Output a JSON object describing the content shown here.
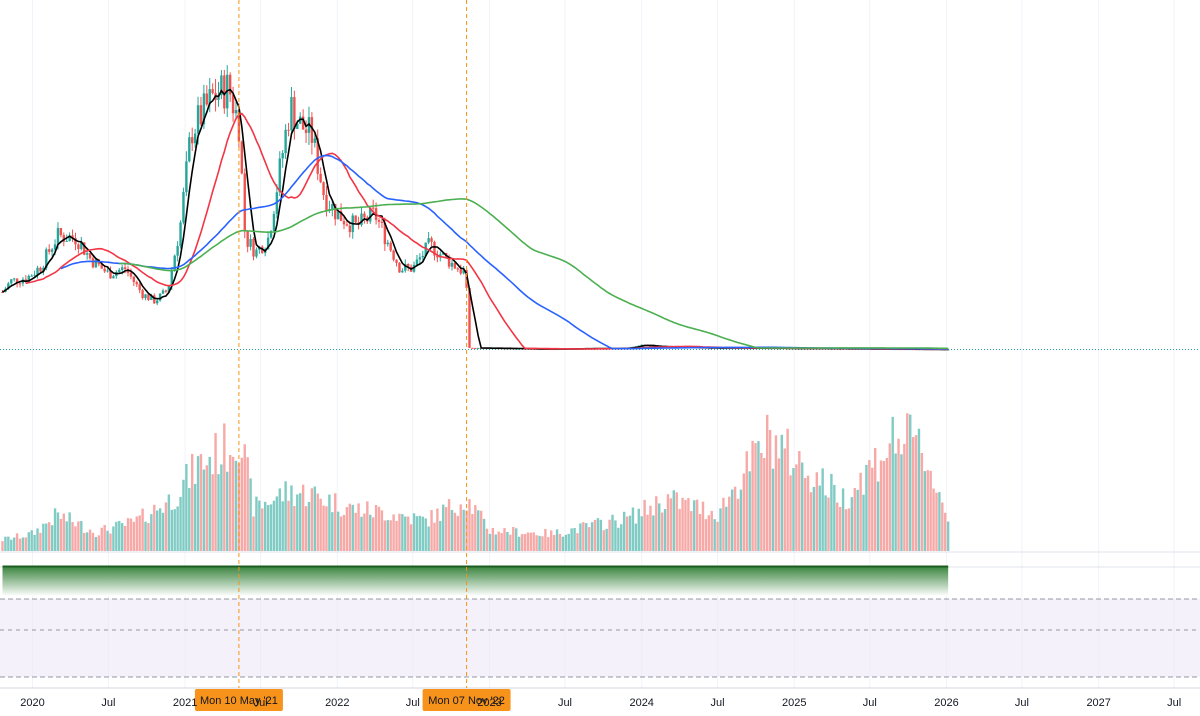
{
  "chart_data": {
    "type": "candlestick",
    "title": "",
    "xlabel": "",
    "ylabel": "",
    "grid": true,
    "legend": "none",
    "x_range": [
      "2019-10-15",
      "2027-09-01"
    ],
    "x_ticks": [
      {
        "date": "2020-01-01",
        "label": "2020"
      },
      {
        "date": "2020-07-01",
        "label": "Jul"
      },
      {
        "date": "2021-01-01",
        "label": "2021"
      },
      {
        "date": "2021-07-01",
        "label": "Jul"
      },
      {
        "date": "2022-01-01",
        "label": "2022"
      },
      {
        "date": "2022-07-01",
        "label": "Jul"
      },
      {
        "date": "2023-01-01",
        "label": "2023"
      },
      {
        "date": "2023-07-01",
        "label": "Jul"
      },
      {
        "date": "2024-01-01",
        "label": "2024"
      },
      {
        "date": "2024-07-01",
        "label": "Jul"
      },
      {
        "date": "2025-01-01",
        "label": "2025"
      },
      {
        "date": "2025-07-01",
        "label": "Jul"
      },
      {
        "date": "2026-01-01",
        "label": "2026"
      },
      {
        "date": "2026-07-01",
        "label": "Jul"
      },
      {
        "date": "2027-01-01",
        "label": "2027"
      },
      {
        "date": "2027-07-01",
        "label": "Jul"
      }
    ],
    "event_markers": [
      {
        "date": "2021-05-10",
        "label": "Mon 10 May '21"
      },
      {
        "date": "2022-11-07",
        "label": "Mon 07 Nov '22"
      }
    ],
    "price_anchors": [
      [
        "2019-10-21",
        32
      ],
      [
        "2019-11-10",
        38
      ],
      [
        "2019-12-20",
        40
      ],
      [
        "2020-01-20",
        46
      ],
      [
        "2020-03-01",
        63
      ],
      [
        "2020-04-15",
        62
      ],
      [
        "2020-05-20",
        50
      ],
      [
        "2020-07-01",
        42
      ],
      [
        "2020-08-10",
        45
      ],
      [
        "2020-09-20",
        31
      ],
      [
        "2020-10-20",
        27
      ],
      [
        "2020-11-20",
        33
      ],
      [
        "2020-12-20",
        68
      ],
      [
        "2021-01-15",
        120
      ],
      [
        "2021-02-10",
        130
      ],
      [
        "2021-03-10",
        140
      ],
      [
        "2021-04-15",
        145
      ],
      [
        "2021-05-10",
        125
      ],
      [
        "2021-05-25",
        62
      ],
      [
        "2021-06-20",
        54
      ],
      [
        "2021-07-20",
        62
      ],
      [
        "2021-08-20",
        105
      ],
      [
        "2021-09-10",
        135
      ],
      [
        "2021-10-01",
        125
      ],
      [
        "2021-11-01",
        118
      ],
      [
        "2021-12-01",
        85
      ],
      [
        "2022-01-01",
        75
      ],
      [
        "2022-02-15",
        68
      ],
      [
        "2022-04-01",
        75
      ],
      [
        "2022-05-01",
        60
      ],
      [
        "2022-06-01",
        45
      ],
      [
        "2022-07-01",
        45
      ],
      [
        "2022-08-10",
        58
      ],
      [
        "2022-10-01",
        48
      ],
      [
        "2022-11-06",
        42
      ],
      [
        "2022-11-10",
        1.2
      ],
      [
        "2023-01-01",
        1.0
      ],
      [
        "2023-06-01",
        0.5
      ],
      [
        "2023-12-01",
        1.0
      ],
      [
        "2024-01-01",
        3.0
      ],
      [
        "2024-02-01",
        2.0
      ],
      [
        "2024-06-01",
        1.2
      ],
      [
        "2025-01-01",
        0.9
      ],
      [
        "2026-01-05",
        0.3
      ]
    ],
    "series": [
      {
        "name": "",
        "kind": "candles",
        "up_color": "#26a69a",
        "down_color": "#ef5350",
        "interval": "weekly"
      },
      {
        "name": "",
        "kind": "moving-average",
        "period_weeks": 5,
        "color": "#000000"
      },
      {
        "name": "",
        "kind": "moving-average",
        "period_weeks": 20,
        "color": "#f23645"
      },
      {
        "name": "",
        "kind": "moving-average",
        "period_weeks": 50,
        "color": "#2962ff"
      },
      {
        "name": "",
        "kind": "moving-average",
        "period_weeks": 100,
        "color": "#4caf50"
      },
      {
        "name": "",
        "kind": "volume",
        "color": "#80cbc4",
        "down_color": "#f7a9a7"
      }
    ],
    "volume_anchors": [
      [
        "2019-10-21",
        12
      ],
      [
        "2020-01-01",
        18
      ],
      [
        "2020-03-01",
        38
      ],
      [
        "2020-06-01",
        20
      ],
      [
        "2020-09-01",
        30
      ],
      [
        "2020-12-01",
        55
      ],
      [
        "2021-02-01",
        90
      ],
      [
        "2021-04-15",
        110
      ],
      [
        "2021-05-10",
        125
      ],
      [
        "2021-06-15",
        45
      ],
      [
        "2021-09-01",
        62
      ],
      [
        "2021-11-01",
        60
      ],
      [
        "2022-02-01",
        45
      ],
      [
        "2022-05-01",
        40
      ],
      [
        "2022-08-01",
        32
      ],
      [
        "2022-11-07",
        55
      ],
      [
        "2023-01-01",
        22
      ],
      [
        "2023-06-01",
        18
      ],
      [
        "2023-12-01",
        35
      ],
      [
        "2024-03-01",
        55
      ],
      [
        "2024-07-01",
        40
      ],
      [
        "2024-11-01",
        120
      ],
      [
        "2025-02-01",
        85
      ],
      [
        "2025-05-01",
        55
      ],
      [
        "2025-09-01",
        120
      ],
      [
        "2025-11-01",
        110
      ],
      [
        "2026-01-05",
        35
      ]
    ],
    "colors": {
      "grid": "#f0f3fa",
      "baseline": "#26a69a",
      "event_line": "#f7931a",
      "event_badge": "#f7931a",
      "indicator_top": "#1b5e20",
      "indicator_fill": "#43a047",
      "band_fill": "#ede7f6",
      "band_border": "#9598a1"
    }
  }
}
